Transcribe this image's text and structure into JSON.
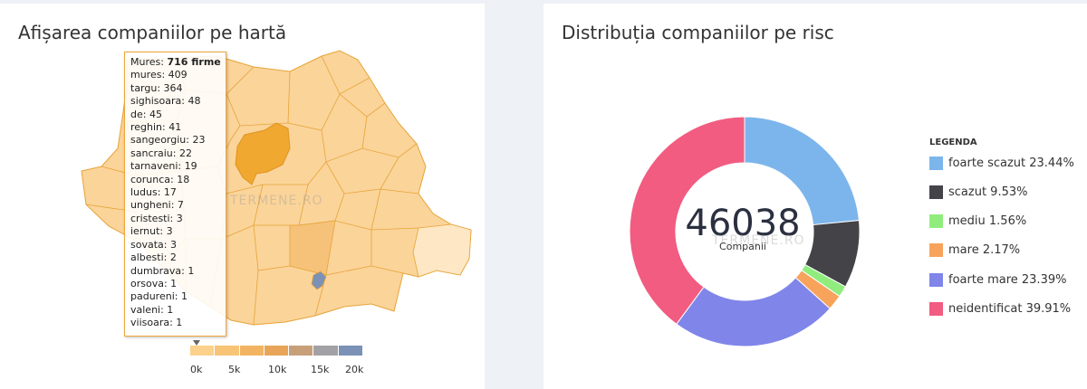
{
  "left_panel": {
    "title": "Afișarea companiilor pe hartă",
    "watermark": "TERMENE.RO",
    "tooltip": {
      "county": "Mures:",
      "total": "716 firme",
      "rows": [
        "mures: 409",
        "targu: 364",
        "sighisoara: 48",
        "de: 45",
        "reghin: 41",
        "sangeorgiu: 23",
        "sancraiu: 22",
        "tarnaveni: 19",
        "corunca: 18",
        "ludus: 17",
        "ungheni: 7",
        "cristesti: 3",
        "iernut: 3",
        "sovata: 3",
        "albesti: 2",
        "dumbrava: 1",
        "orsova: 1",
        "padureni: 1",
        "valeni: 1",
        "viisoara: 1"
      ]
    },
    "scale": {
      "colors": [
        "#fbd18c",
        "#f7c478",
        "#f2b462",
        "#e8a55a",
        "#c7a07a",
        "#a2a2a6",
        "#7b91b6"
      ],
      "labels": [
        "0k",
        "5k",
        "10k",
        "15k",
        "20k"
      ]
    },
    "map_colors": {
      "base": "#fbd49a",
      "stroke": "#e6a437",
      "highlight": "#f0a830",
      "light": "#fde7c4",
      "medium": "#f6c27a",
      "capital": "#7b91b6"
    }
  },
  "right_panel": {
    "title": "Distribuția companiilor pe risc",
    "center_value": "46038",
    "center_label": "Companii",
    "watermark": "TERMENE.RO",
    "legend_title": "LEGENDA"
  },
  "chart_data": {
    "type": "pie",
    "total": 46038,
    "series": [
      {
        "name": "foarte scazut",
        "label": "foarte scazut 23.44%",
        "value": 23.44,
        "color": "#7cb5ec"
      },
      {
        "name": "scazut",
        "label": "scazut 9.53%",
        "value": 9.53,
        "color": "#434348"
      },
      {
        "name": "mediu",
        "label": "mediu 1.56%",
        "value": 1.56,
        "color": "#90ed7d"
      },
      {
        "name": "mare",
        "label": "mare 2.17%",
        "value": 2.17,
        "color": "#f7a35c"
      },
      {
        "name": "foarte mare",
        "label": "foarte mare 23.39%",
        "value": 23.39,
        "color": "#8085e9"
      },
      {
        "name": "neidentificat",
        "label": "neidentificat 39.91%",
        "value": 39.91,
        "color": "#f15c80"
      }
    ]
  }
}
